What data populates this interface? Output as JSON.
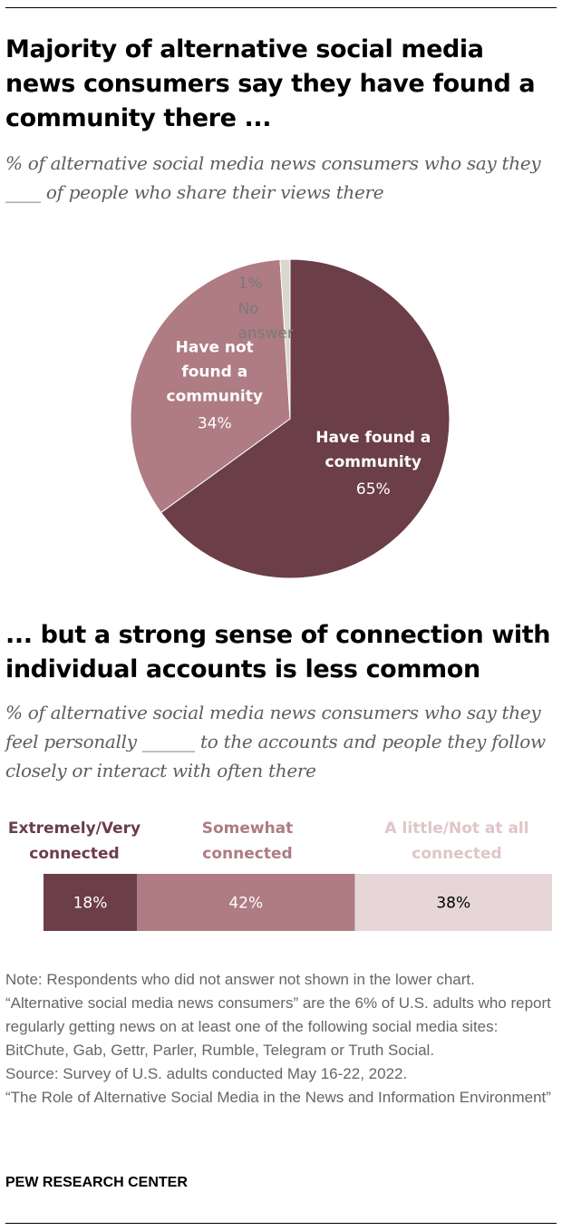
{
  "title_1": "Majority of alternative social media news consumers say they have found a community there ...",
  "subtitle_1": "% of alternative social media news consumers who say they ____ of people who share their views there",
  "title_2": "... but a strong sense of connection with individual accounts is less common",
  "subtitle_2": "% of alternative social media news consumers who say they feel personally ______ to the accounts and people they follow closely or interact with often there",
  "colors": {
    "dark_maroon": "#6b3e48",
    "mauve": "#ae7c82",
    "light_pink": "#e6d6d8",
    "tan": "#dad7cb",
    "gray_text": "#7a7a7a"
  },
  "chart_data": [
    {
      "type": "pie",
      "categories": [
        "Have found a community",
        "Have not found a community",
        "No answer"
      ],
      "values": [
        65,
        34,
        1
      ],
      "labels": [
        {
          "lines": [
            "Have found a",
            "community"
          ],
          "value": "65%"
        },
        {
          "lines": [
            "Have not",
            "found a",
            "community"
          ],
          "value": "34%"
        },
        {
          "lines": [
            "No",
            "answer"
          ],
          "value": "1%"
        }
      ],
      "colors": [
        "#6b3e48",
        "#ae7c82",
        "#dad7cb"
      ]
    },
    {
      "type": "bar",
      "stacked": true,
      "orientation": "horizontal",
      "series": [
        {
          "name": "Extremely/Very connected",
          "lines": [
            "Extremely/Very",
            "connected"
          ],
          "value": 18,
          "label": "18%",
          "color": "#6b3e48",
          "text_color": "#ffffff",
          "header_color": "#6b3e48"
        },
        {
          "name": "Somewhat connected",
          "lines": [
            "Somewhat",
            "connected"
          ],
          "value": 42,
          "label": "42%",
          "color": "#ae7c82",
          "text_color": "#ffffff",
          "header_color": "#ae7c82"
        },
        {
          "name": "A little/Not at all connected",
          "lines": [
            "A little/Not at all",
            "connected"
          ],
          "value": 38,
          "label": "38%",
          "color": "#e6d6d8",
          "text_color": "#000000",
          "header_color": "#e0c5c8"
        }
      ]
    }
  ],
  "note": "Note: Respondents who did not answer not shown in the lower chart. “Alternative social media news consumers” are the 6% of U.S. adults who report regularly getting news on at least one of the following social media sites: BitChute, Gab, Gettr, Parler, Rumble, Telegram or Truth Social.",
  "source": "Source: Survey of U.S. adults conducted May 16-22, 2022.",
  "report": "“The Role of Alternative Social Media in the News and Information Environment”",
  "brand": "PEW RESEARCH CENTER"
}
